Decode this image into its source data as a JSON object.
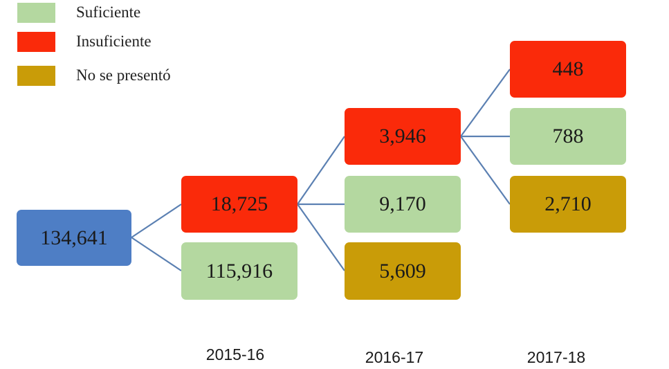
{
  "colors": {
    "suficiente": "#b4d8a0",
    "insuficiente": "#fa2a0a",
    "no_se_presento": "#c99c08",
    "total": "#4e7ec5",
    "connector": "#5b80b2"
  },
  "legend": [
    {
      "label": "Suficiente",
      "color": "#b4d8a0"
    },
    {
      "label": "Insuficiente",
      "color": "#fa2a0a"
    },
    {
      "label": "No se presentó",
      "color": "#c99c08"
    }
  ],
  "tree": {
    "root": {
      "value": "134,641"
    },
    "y2015": {
      "insuficiente": "18,725",
      "suficiente": "115,916"
    },
    "y2016": {
      "insuficiente": "3,946",
      "suficiente": "9,170",
      "no_se_presento": "5,609"
    },
    "y2017": {
      "insuficiente": "448",
      "suficiente": "788",
      "no_se_presento": "2,710"
    }
  },
  "years": [
    "2015-16",
    "2016-17",
    "2017-18"
  ]
}
